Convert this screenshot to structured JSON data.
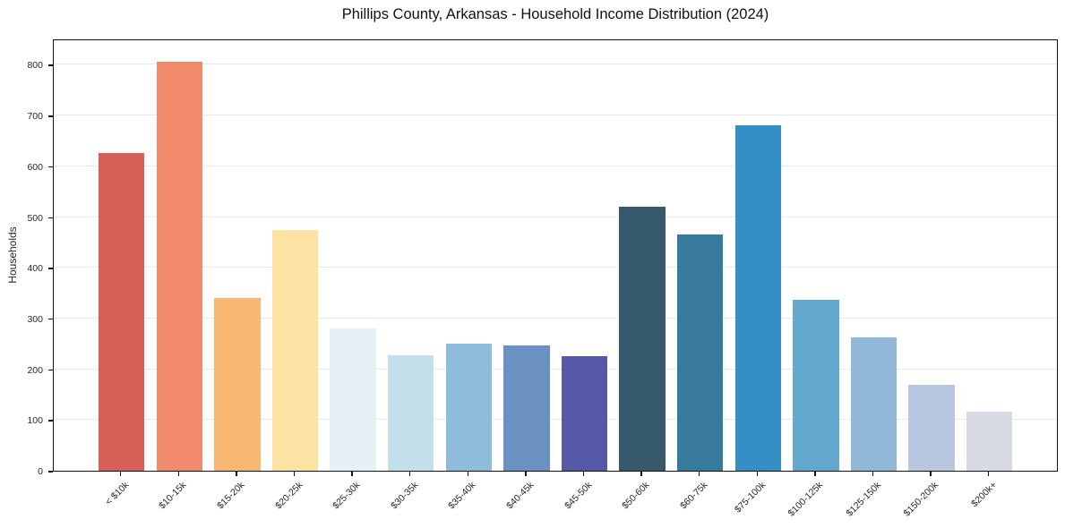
{
  "title": "Phillips County, Arkansas - Household Income Distribution (2024)",
  "chart_data": {
    "type": "bar",
    "title": "Phillips County, Arkansas - Household Income Distribution (2024)",
    "xlabel": "",
    "ylabel": "Households",
    "categories": [
      "< $10k",
      "$10-15k",
      "$15-20k",
      "$20-25k",
      "$25-30k",
      "$30-35k",
      "$35-40k",
      "$40-45k",
      "$45-50k",
      "$50-60k",
      "$60-75k",
      "$75-100k",
      "$100-125k",
      "$125-150k",
      "$150-200k",
      "$200k+"
    ],
    "values": [
      627,
      807,
      341,
      475,
      280,
      228,
      251,
      247,
      226,
      520,
      466,
      681,
      337,
      263,
      170,
      117
    ],
    "bar_colors": [
      "#d65f57",
      "#f08a6b",
      "#f8b871",
      "#fce3a4",
      "#e6f0f5",
      "#c2e0ec",
      "#90bcdb",
      "#6b91c3",
      "#5659a6",
      "#36596b",
      "#387a9c",
      "#348fc5",
      "#64a8cd",
      "#92b8d8",
      "#b7c7e0",
      "#d7d9e5"
    ],
    "ylim": [
      0,
      852
    ],
    "yticks": [
      0,
      100,
      200,
      300,
      400,
      500,
      600,
      700,
      800
    ],
    "grid": "horizontal",
    "gridline_color": "#e9e9e9",
    "legend": "none",
    "background": "#ffffff",
    "x_tick_rotation_deg": 45
  }
}
